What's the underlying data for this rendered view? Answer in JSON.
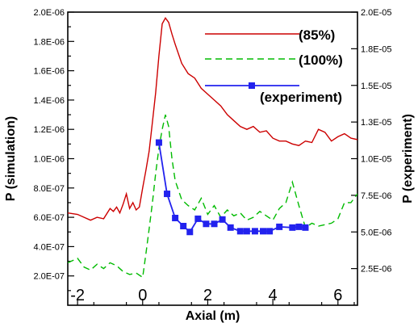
{
  "chart_data": {
    "type": "line",
    "xlabel": "Axial (m)",
    "ylabel_left": "P (simulation)",
    "ylabel_right": "P (experiment)",
    "xlim": [
      -2.3,
      6.6
    ],
    "ylim_left": [
      0,
      2e-06
    ],
    "ylim_right": [
      0,
      2e-05
    ],
    "x_ticks": [
      -2,
      0,
      2,
      4,
      6
    ],
    "x_tick_labels": [
      "-2",
      "0",
      "2",
      "4",
      "6"
    ],
    "y_left_ticks": [
      2e-07,
      4e-07,
      6e-07,
      8e-07,
      1e-06,
      1.2e-06,
      1.4e-06,
      1.6e-06,
      1.8e-06,
      2e-06
    ],
    "y_left_tick_labels": [
      "2.0E-07",
      "4.0E-07",
      "6.0E-07",
      "8.0E-07",
      "1.0E-06",
      "1.2E-06",
      "1.4E-06",
      "1.6E-06",
      "1.8E-06",
      "2.0E-06"
    ],
    "y_right_ticks": [
      2.5e-06,
      5e-06,
      7.5e-06,
      1e-05,
      1.25e-05,
      1.5e-05,
      1.75e-05,
      2e-05
    ],
    "y_right_tick_labels": [
      "2.5E-06",
      "5.0E-06",
      "7.5E-06",
      "1.0E-05",
      "1.3E-05",
      "1.5E-05",
      "1.8E-05",
      "2.0E-05"
    ],
    "legend_position": "top-right",
    "series": [
      {
        "name": "(85%)",
        "axis": "left",
        "color": "#cc0000",
        "style": "solid",
        "x": [
          -2.3,
          -2.0,
          -1.8,
          -1.6,
          -1.4,
          -1.2,
          -1.0,
          -0.9,
          -0.8,
          -0.7,
          -0.6,
          -0.5,
          -0.4,
          -0.3,
          -0.2,
          -0.1,
          0.0,
          0.1,
          0.2,
          0.3,
          0.4,
          0.5,
          0.6,
          0.7,
          0.8,
          0.9,
          1.0,
          1.2,
          1.4,
          1.6,
          1.8,
          2.0,
          2.2,
          2.4,
          2.6,
          2.8,
          3.0,
          3.2,
          3.4,
          3.6,
          3.8,
          4.0,
          4.2,
          4.4,
          4.6,
          4.8,
          5.0,
          5.2,
          5.4,
          5.6,
          5.8,
          6.0,
          6.2,
          6.4,
          6.6
        ],
        "y": [
          6.3e-07,
          6.2e-07,
          6e-07,
          5.8e-07,
          6e-07,
          5.9e-07,
          6.6e-07,
          6.4e-07,
          6.7e-07,
          6.3e-07,
          6.9e-07,
          7.6e-07,
          6.6e-07,
          7e-07,
          6.5e-07,
          6.7e-07,
          8e-07,
          9.2e-07,
          1.05e-06,
          1.25e-06,
          1.45e-06,
          1.7e-06,
          1.92e-06,
          1.96e-06,
          1.93e-06,
          1.85e-06,
          1.78e-06,
          1.65e-06,
          1.58e-06,
          1.55e-06,
          1.48e-06,
          1.44e-06,
          1.4e-06,
          1.36e-06,
          1.3e-06,
          1.26e-06,
          1.22e-06,
          1.2e-06,
          1.22e-06,
          1.18e-06,
          1.19e-06,
          1.14e-06,
          1.12e-06,
          1.12e-06,
          1.1e-06,
          1.09e-06,
          1.12e-06,
          1.11e-06,
          1.2e-06,
          1.18e-06,
          1.12e-06,
          1.15e-06,
          1.17e-06,
          1.14e-06,
          1.13e-06
        ]
      },
      {
        "name": "(100%)",
        "axis": "left",
        "color": "#00bb00",
        "style": "dashed",
        "x": [
          -2.3,
          -2.0,
          -1.8,
          -1.6,
          -1.4,
          -1.2,
          -1.0,
          -0.8,
          -0.6,
          -0.4,
          -0.2,
          0.0,
          0.1,
          0.2,
          0.3,
          0.4,
          0.5,
          0.6,
          0.7,
          0.8,
          0.9,
          1.0,
          1.2,
          1.4,
          1.6,
          1.8,
          2.0,
          2.2,
          2.4,
          2.6,
          2.8,
          3.0,
          3.2,
          3.4,
          3.6,
          3.8,
          4.0,
          4.2,
          4.4,
          4.6,
          4.8,
          5.0,
          5.2,
          5.4,
          5.6,
          5.8,
          6.0,
          6.2,
          6.4,
          6.6
        ],
        "y": [
          2.9e-07,
          3.2e-07,
          2.6e-07,
          2.4e-07,
          2.8e-07,
          2.5e-07,
          2.9e-07,
          2.7e-07,
          2.3e-07,
          2.1e-07,
          2.2e-07,
          1.9e-07,
          3.5e-07,
          5.2e-07,
          7e-07,
          9e-07,
          1.07e-06,
          1.2e-06,
          1.3e-06,
          1.22e-06,
          1e-06,
          8.5e-07,
          7.2e-07,
          6.8e-07,
          6.5e-07,
          7.3e-07,
          6.2e-07,
          6.8e-07,
          6e-07,
          6.5e-07,
          6.1e-07,
          6.3e-07,
          5.8e-07,
          6e-07,
          6.4e-07,
          6.1e-07,
          5.8e-07,
          6.6e-07,
          7e-07,
          8.4e-07,
          6.8e-07,
          5.3e-07,
          5.6e-07,
          5.4e-07,
          5.5e-07,
          5.6e-07,
          5.9e-07,
          7e-07,
          7e-07,
          7.6e-07
        ]
      },
      {
        "name": "(experiment)",
        "axis": "right",
        "color": "#2222ee",
        "style": "solid-markers",
        "x": [
          0.5,
          0.75,
          1.0,
          1.25,
          1.45,
          1.7,
          1.95,
          2.2,
          2.45,
          2.7,
          3.0,
          3.2,
          3.45,
          3.7,
          3.9,
          4.2,
          4.6,
          4.8,
          5.0
        ],
        "y": [
          1.11e-05,
          7.6e-06,
          5.95e-06,
          5.4e-06,
          5e-06,
          5.9e-06,
          5.55e-06,
          5.55e-06,
          5.85e-06,
          5.3e-06,
          5.05e-06,
          5.05e-06,
          5.05e-06,
          5.05e-06,
          5.05e-06,
          5.35e-06,
          5.3e-06,
          5.35e-06,
          5.3e-06
        ]
      }
    ]
  }
}
